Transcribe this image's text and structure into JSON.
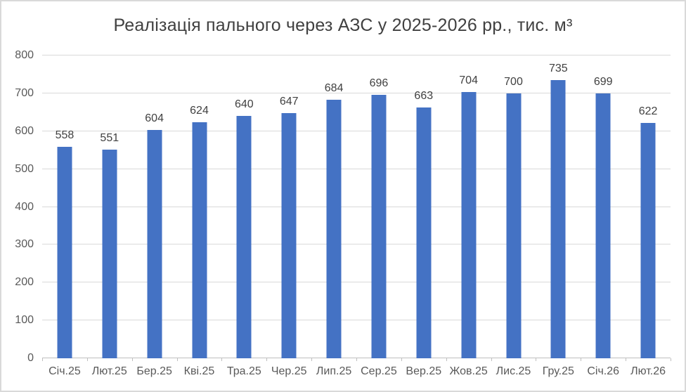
{
  "chart_data": {
    "type": "bar",
    "title": "Реалізація пального через АЗС у 2025-2026 рр., тис. м³",
    "categories": [
      "Січ.25",
      "Лют.25",
      "Бер.25",
      "Кві.25",
      "Тра.25",
      "Чер.25",
      "Лип.25",
      "Сер.25",
      "Вер.25",
      "Жов.25",
      "Лис.25",
      "Гру.25",
      "Січ.26",
      "Лют.26"
    ],
    "values": [
      558,
      551,
      604,
      624,
      640,
      647,
      684,
      696,
      663,
      704,
      700,
      735,
      699,
      622
    ],
    "xlabel": "",
    "ylabel": "",
    "ylim": [
      0,
      800
    ],
    "y_ticks": [
      0,
      100,
      200,
      300,
      400,
      500,
      600,
      700,
      800
    ],
    "grid": "horizontal",
    "legend": "none",
    "data_labels": true,
    "bar_color": "#4472C4",
    "data_label_color": "#404040",
    "title_color": "#404040",
    "axis_text_color": "#595959",
    "gridline_color": "#D9D9D9",
    "axis_line_color": "#BFBFBF",
    "frame_border_color": "#D9D9D9",
    "background_color": "#FFFFFF"
  }
}
